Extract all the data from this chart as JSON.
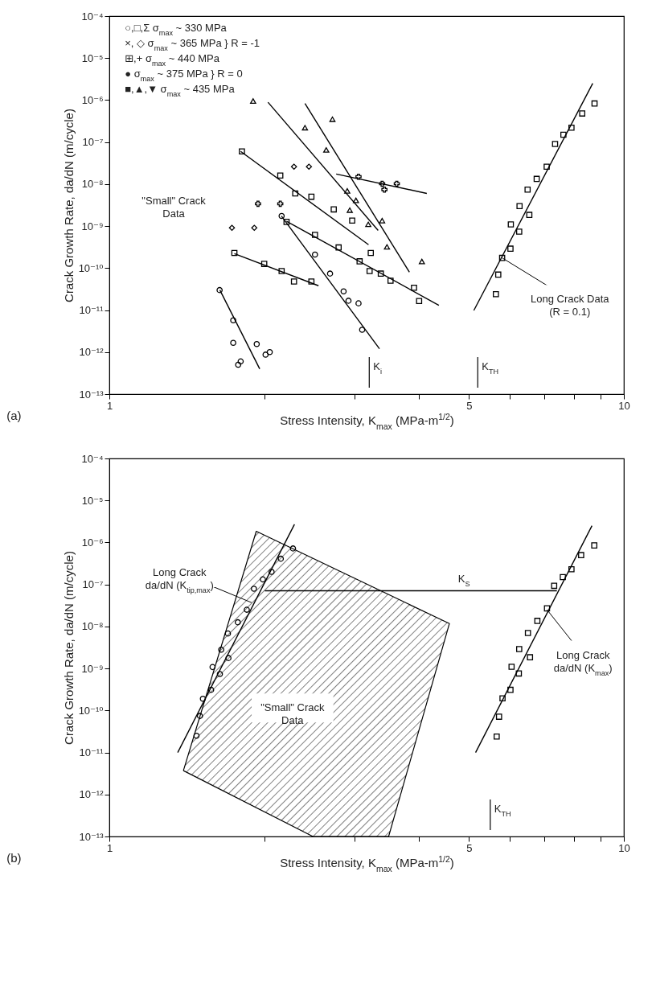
{
  "chart_data": [
    {
      "type": "scatter",
      "title": "(a)",
      "xlabel": "Stress Intensity, K$_{max}$ (MPa-m$^{1/2}$)",
      "ylabel": "Crack Growth Rate, da/dN (m/cycle)",
      "log": "xy",
      "xlim": [
        1,
        10
      ],
      "ylim": [
        1e-13,
        0.0001
      ],
      "xticks": [
        1,
        {
          "value": 2,
          "label": null
        },
        {
          "value": 3,
          "label": null
        },
        {
          "value": 4,
          "label": null
        },
        5,
        {
          "value": 6,
          "label": null
        },
        {
          "value": 7,
          "label": null
        },
        {
          "value": 8,
          "label": null
        },
        {
          "value": 9,
          "label": null
        },
        10
      ],
      "yticks": [
        {
          "value": 1e-13,
          "label": "10⁻¹³"
        },
        {
          "value": 1e-12,
          "label": "10⁻¹²"
        },
        {
          "value": 1e-11,
          "label": "10⁻¹¹"
        },
        {
          "value": 1e-10,
          "label": "10⁻¹⁰"
        },
        {
          "value": 1e-09,
          "label": "10⁻⁹"
        },
        {
          "value": 1e-08,
          "label": "10⁻⁸"
        },
        {
          "value": 1e-07,
          "label": "10⁻⁷"
        },
        {
          "value": 1e-06,
          "label": "10⁻⁶"
        },
        {
          "value": 1e-05,
          "label": "10⁻⁵"
        },
        {
          "value": 0.0001,
          "label": "10⁻⁴"
        }
      ],
      "series": [
        {
          "color": "#000000",
          "marker": "circle",
          "x": [
            1.638,
            1.741,
            1.741,
            1.934,
            2.012,
            2.05,
            1.78,
            1.8
          ],
          "values": [
            3e-11,
            5.7e-12,
            1.66e-12,
            1.56e-12,
            8.7e-13,
            1e-12,
            5e-13,
            6e-13
          ]
        },
        {
          "color": "#000000",
          "marker": "square",
          "x": [
            1.75,
            2.0,
            2.162,
            2.285,
            2.47
          ],
          "values": [
            2.3e-10,
            1.26e-10,
            8.5e-11,
            4.8e-11,
            4.8e-11
          ]
        },
        {
          "color": "#000000",
          "marker": "diamond",
          "x": [
            1.731,
            1.913
          ],
          "values": [
            9.1e-10,
            9.1e-10
          ]
        },
        {
          "color": "#000000",
          "marker": "cross",
          "x": [
            1.945,
            2.149
          ],
          "values": [
            3.4e-09,
            3.4e-09
          ]
        },
        {
          "color": "#000000",
          "marker": "diamond",
          "x": [
            2.285,
            2.443
          ],
          "values": [
            2.6e-08,
            2.6e-08
          ]
        },
        {
          "color": "#000000",
          "marker": "square",
          "x": [
            1.81,
            2.149,
            2.298,
            2.47,
            2.73,
            2.965,
            3.222
          ],
          "values": [
            6e-08,
            1.6e-08,
            6e-09,
            5e-09,
            2.5e-09,
            1.35e-09,
            2.3e-10
          ]
        },
        {
          "color": "#000000",
          "marker": "cross",
          "x": [
            3.05,
            3.39,
            3.425,
            3.62
          ],
          "values": [
            1.5e-08,
            1.02e-08,
            7.4e-09,
            1.02e-08
          ]
        },
        {
          "color": "#000000",
          "marker": "circle",
          "x": [
            2.162,
            2.51,
            2.685,
            2.853,
            2.916,
            3.05,
            3.1
          ],
          "values": [
            1.74e-09,
            2.1e-10,
            7.4e-11,
            2.8e-11,
            1.67e-11,
            1.45e-11,
            3.4e-12
          ]
        },
        {
          "color": "#000000",
          "marker": "square",
          "x": [
            2.21,
            2.51,
            2.79,
            3.065,
            3.205,
            3.37,
            3.52,
            3.91,
            4.0
          ],
          "values": [
            1.26e-09,
            6.2e-10,
            3.1e-10,
            1.45e-10,
            8.5e-11,
            7.4e-11,
            5e-11,
            3.4e-11,
            1.65e-11
          ]
        },
        {
          "color": "#000000",
          "marker": "triangle",
          "x": [
            2.714,
            2.9,
            3.015,
            3.186,
            3.464,
            4.05
          ],
          "values": [
            3.5e-07,
            6.9e-09,
            4.1e-09,
            1.1e-09,
            3.2e-10,
            1.44e-10
          ]
        },
        {
          "color": "#000000",
          "marker": "triangle",
          "x": [
            1.903,
            2.4,
            2.64,
            2.933,
            3.39
          ],
          "values": [
            9.5e-07,
            2.2e-07,
            6.5e-08,
            2.4e-09,
            1.35e-09
          ]
        },
        {
          "color": "#000000",
          "marker": "square",
          "x": [
            5.64,
            5.7,
            5.8,
            6.02,
            6.03,
            6.26,
            6.27,
            6.55,
            6.5,
            6.77,
            7.08,
            7.35,
            7.63,
            7.91,
            8.3,
            8.77
          ],
          "values": [
            2.4e-11,
            7e-11,
            1.75e-10,
            2.9e-10,
            1.1e-09,
            7.4e-10,
            3e-09,
            1.85e-09,
            7.4e-09,
            1.33e-08,
            2.6e-08,
            9e-08,
            1.5e-07,
            2.2e-07,
            4.8e-07,
            8.3e-07
          ]
        },
        {
          "type": "line",
          "color": "#000000",
          "x": [
            1.64,
            1.96
          ],
          "values": [
            3e-11,
            4e-13
          ]
        },
        {
          "type": "line",
          "color": "#000000",
          "x": [
            1.75,
            2.55
          ],
          "values": [
            2.2e-10,
            3.8e-11
          ]
        },
        {
          "type": "line",
          "color": "#000000",
          "x": [
            1.8,
            3.19
          ],
          "values": [
            6e-08,
            3.6e-10
          ]
        },
        {
          "type": "line",
          "color": "#000000",
          "x": [
            2.76,
            4.14
          ],
          "values": [
            1.74e-08,
            6e-09
          ]
        },
        {
          "type": "line",
          "color": "#000000",
          "x": [
            2.16,
            3.35
          ],
          "values": [
            1.74e-09,
            1.2e-12
          ]
        },
        {
          "type": "line",
          "color": "#000000",
          "x": [
            2.21,
            4.37
          ],
          "values": [
            1.3e-09,
            1.3e-11
          ]
        },
        {
          "type": "line",
          "color": "#000000",
          "x": [
            2.4,
            3.83
          ],
          "values": [
            8.3e-07,
            8e-11
          ]
        },
        {
          "type": "line",
          "color": "#000000",
          "x": [
            2.034,
            3.33
          ],
          "values": [
            8.9e-07,
            7.9e-10
          ]
        },
        {
          "type": "line",
          "color": "#000000",
          "x": [
            5.11,
            8.7
          ],
          "values": [
            9.8e-12,
            2.5e-06
          ]
        }
      ],
      "ref_lines": [
        {
          "axis": "x",
          "value": 3.2,
          "label": "K$_{i}$"
        },
        {
          "axis": "x",
          "value": 5.2,
          "label": "K$_{TH}$"
        }
      ],
      "annotations": [
        "○,□,Σ   σ$_{max}$ ~ 330 MPa",
        "×, ◇   σ$_{max}$ ~ 365 MPa   }  R = -1",
        "⊞,+   σ$_{max}$ ~ 440 MPa",
        "●   σ$_{max}$ ~ 375 MPa   }  R = 0",
        "■,▲,▼   σ$_{max}$ ~ 435 MPa",
        "\"Small\" Crack\nData",
        {
          "text": "Long Crack Data\n(R = 0.1)",
          "x": 5.8,
          "y": 1.75e-10
        }
      ]
    },
    {
      "type": "scatter",
      "title": "(b)",
      "xlabel": "Stress Intensity, K$_{max}$ (MPa-m$^{1/2}$)",
      "ylabel": "Crack Growth Rate, da/dN (m/cycle)",
      "log": "xy",
      "xlim": [
        1,
        10
      ],
      "ylim": [
        1e-13,
        0.0001
      ],
      "xticks": [
        1,
        {
          "value": 2,
          "label": null
        },
        {
          "value": 3,
          "label": null
        },
        {
          "value": 4,
          "label": null
        },
        5,
        {
          "value": 6,
          "label": null
        },
        {
          "value": 7,
          "label": null
        },
        {
          "value": 8,
          "label": null
        },
        {
          "value": 9,
          "label": null
        },
        10
      ],
      "yticks": [
        {
          "value": 1e-13,
          "label": "10⁻¹³"
        },
        {
          "value": 1e-12,
          "label": "10⁻¹²"
        },
        {
          "value": 1e-11,
          "label": "10⁻¹¹"
        },
        {
          "value": 1e-10,
          "label": "10⁻¹⁰"
        },
        {
          "value": 1e-09,
          "label": "10⁻⁹"
        },
        {
          "value": 1e-08,
          "label": "10⁻⁸"
        },
        {
          "value": 1e-07,
          "label": "10⁻⁷"
        },
        {
          "value": 1e-06,
          "label": "10⁻⁶"
        },
        {
          "value": 1e-05,
          "label": "10⁻⁵"
        },
        {
          "value": 0.0001,
          "label": "10⁻⁴"
        }
      ],
      "series": [
        {
          "type": "area",
          "color": "#000000",
          "x": [
            1.393,
            1.93,
            4.58,
            3.49,
            2.487
          ],
          "values": [
            3.7e-12,
            1.85e-06,
            1.17e-08,
            1e-13,
            1e-13
          ]
        },
        {
          "color": "#000000",
          "marker": "circle",
          "x": [
            1.477,
            1.5,
            1.52,
            1.577,
            1.587,
            1.64,
            1.65,
            1.704,
            1.7,
            1.777,
            1.85,
            1.91,
            1.988,
            2.067,
            2.154,
            2.275
          ],
          "values": [
            2.5e-11,
            7.4e-11,
            1.9e-10,
            3.1e-10,
            1.08e-09,
            7.4e-10,
            2.8e-09,
            1.77e-09,
            6.8e-09,
            1.26e-08,
            2.5e-08,
            7.9e-08,
            1.32e-07,
            2e-07,
            4.1e-07,
            7.2e-07
          ]
        },
        {
          "color": "#000000",
          "marker": "square",
          "x": [
            5.66,
            5.72,
            5.81,
            6.02,
            6.05,
            6.25,
            6.26,
            6.57,
            6.51,
            6.79,
            7.09,
            7.32,
            7.61,
            7.91,
            8.26,
            8.76
          ],
          "values": [
            2.4e-11,
            7.1e-11,
            1.94e-10,
            3.1e-10,
            1.1e-09,
            7.6e-10,
            2.9e-09,
            1.85e-09,
            7e-09,
            1.36e-08,
            2.7e-08,
            9.3e-08,
            1.5e-07,
            2.3e-07,
            5e-07,
            8.5e-07
          ]
        },
        {
          "type": "line",
          "color": "#000000",
          "x": [
            1.358,
            2.29
          ],
          "values": [
            1e-11,
            2.7e-06
          ]
        },
        {
          "type": "line",
          "color": "#000000",
          "x": [
            5.15,
            8.67
          ],
          "values": [
            1e-11,
            2.5e-06
          ]
        },
        {
          "type": "line",
          "color": "#000000",
          "x": [
            7.41,
            2.005
          ],
          "values": [
            7.1e-08,
            7.1e-08
          ]
        }
      ],
      "ref_lines": [
        {
          "axis": "x",
          "value": 5.5,
          "label": "K$_{TH}$"
        }
      ],
      "annotations": [
        {
          "text": "Long Crack\nda/dN (K$_{tip,max}$)",
          "x": 1.89,
          "y": 3.7e-08
        },
        "\"Small\" Crack\nData",
        {
          "text": "K$_{S}$",
          "x": 4.89,
          "y": 7.1e-08
        },
        {
          "text": "Long Crack\nda/dN (K$_{max}$)",
          "x": 7.09,
          "y": 2.5e-08
        }
      ]
    }
  ]
}
